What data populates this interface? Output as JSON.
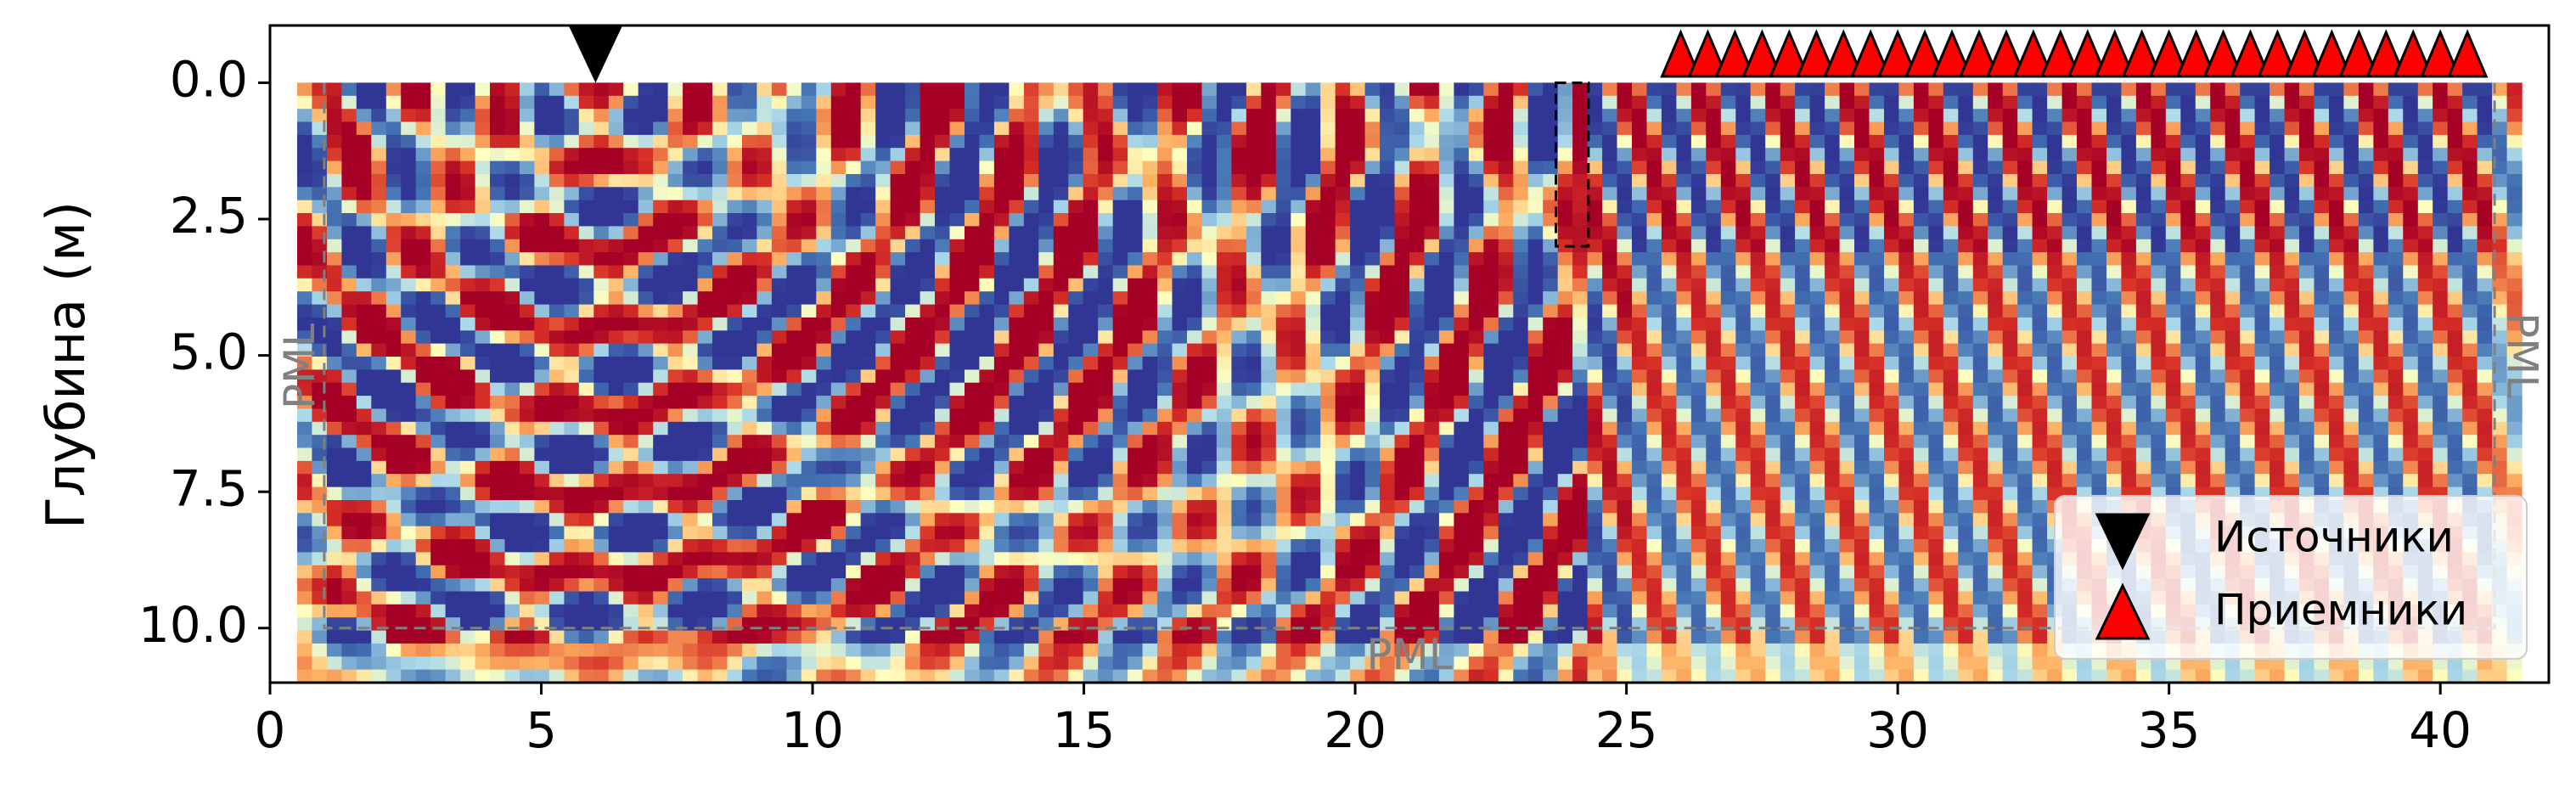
{
  "chart_data": {
    "type": "heatmap",
    "title": "",
    "xlabel": "",
    "ylabel": "Глубина (м)",
    "xlim": [
      0,
      42
    ],
    "ylim": [
      11,
      -1.05
    ],
    "x_ticks": [
      0,
      5,
      10,
      15,
      20,
      25,
      30,
      35,
      40
    ],
    "x_tick_labels": [
      "0",
      "5",
      "10",
      "15",
      "20",
      "25",
      "30",
      "35",
      "40"
    ],
    "y_ticks": [
      0.0,
      2.5,
      5.0,
      7.5,
      10.0
    ],
    "y_tick_labels": [
      "0.0",
      "2.5",
      "5.0",
      "7.5",
      "10.0"
    ],
    "model_extent": {
      "x": [
        0.5,
        41.5
      ],
      "depth": [
        0,
        11
      ]
    },
    "colormap": "RdYlBu (red = positive, blue = negative wavefield)",
    "pml": {
      "x_left": 1.0,
      "x_right": 41.0,
      "depth_bottom": 10.0,
      "labels": [
        "PML",
        "PML",
        "PML"
      ]
    },
    "anomaly_box": {
      "x": [
        23.7,
        24.3
      ],
      "depth": [
        0,
        3.0
      ]
    },
    "sources": [
      {
        "x": 6.0,
        "depth": -0.5
      }
    ],
    "receivers": {
      "x": [
        26.0,
        26.5,
        27.0,
        27.5,
        28.0,
        28.5,
        29.0,
        29.5,
        30.0,
        30.5,
        31.0,
        31.5,
        32.0,
        32.5,
        33.0,
        33.5,
        34.0,
        34.5,
        35.0,
        35.5,
        36.0,
        36.5,
        37.0,
        37.5,
        38.0,
        38.5,
        39.0,
        39.5,
        40.0,
        40.5
      ],
      "depth": -0.5
    },
    "legend": {
      "position": "lower-right",
      "entries": [
        "Источники",
        "Приемники"
      ]
    },
    "colors": {
      "source": "#000000",
      "receiver": "#ff0000",
      "pml_line": "#808080"
    }
  }
}
